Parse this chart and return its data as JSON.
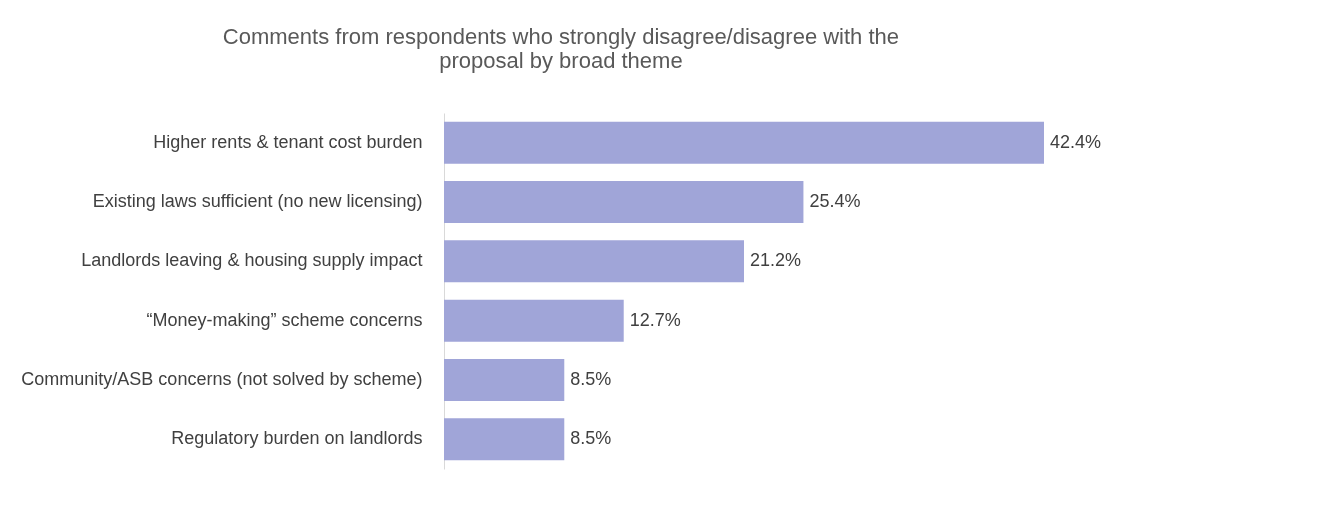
{
  "chart_data": {
    "type": "bar",
    "orientation": "horizontal",
    "title": [
      "Comments from respondents who strongly disagree/disagree with the",
      "proposal by broad theme"
    ],
    "categories": [
      "Higher rents & tenant cost burden",
      "Existing laws sufficient (no new licensing)",
      "Landlords leaving & housing supply impact",
      "“Money-making” scheme concerns",
      "Community/ASB concerns (not solved by scheme)",
      "Regulatory burden on landlords"
    ],
    "values": [
      42.4,
      25.4,
      21.2,
      12.7,
      8.5,
      8.5
    ],
    "value_labels": [
      "42.4%",
      "25.4%",
      "21.2%",
      "12.7%",
      "8.5%",
      "8.5%"
    ],
    "color": "#a0a5d8",
    "grid": false
  }
}
